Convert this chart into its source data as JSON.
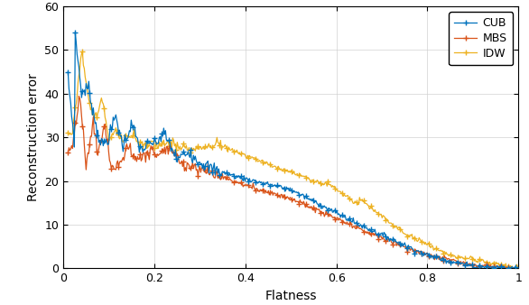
{
  "title": "",
  "xlabel": "Flatness",
  "ylabel": "Reconstruction error",
  "xlim": [
    0,
    1
  ],
  "ylim": [
    0,
    60
  ],
  "yticks": [
    0,
    10,
    20,
    30,
    40,
    50,
    60
  ],
  "xticks": [
    0,
    0.2,
    0.4,
    0.6,
    0.8,
    1.0
  ],
  "legend_labels": [
    "CUB",
    "MBS",
    "IDW"
  ],
  "colors": {
    "CUB": "#0072BD",
    "MBS": "#D95319",
    "IDW": "#EDB120"
  },
  "marker": "+",
  "markersize": 4,
  "linewidth": 0.9,
  "grid_color": "#D0D0D0",
  "background": "#FFFFFF"
}
